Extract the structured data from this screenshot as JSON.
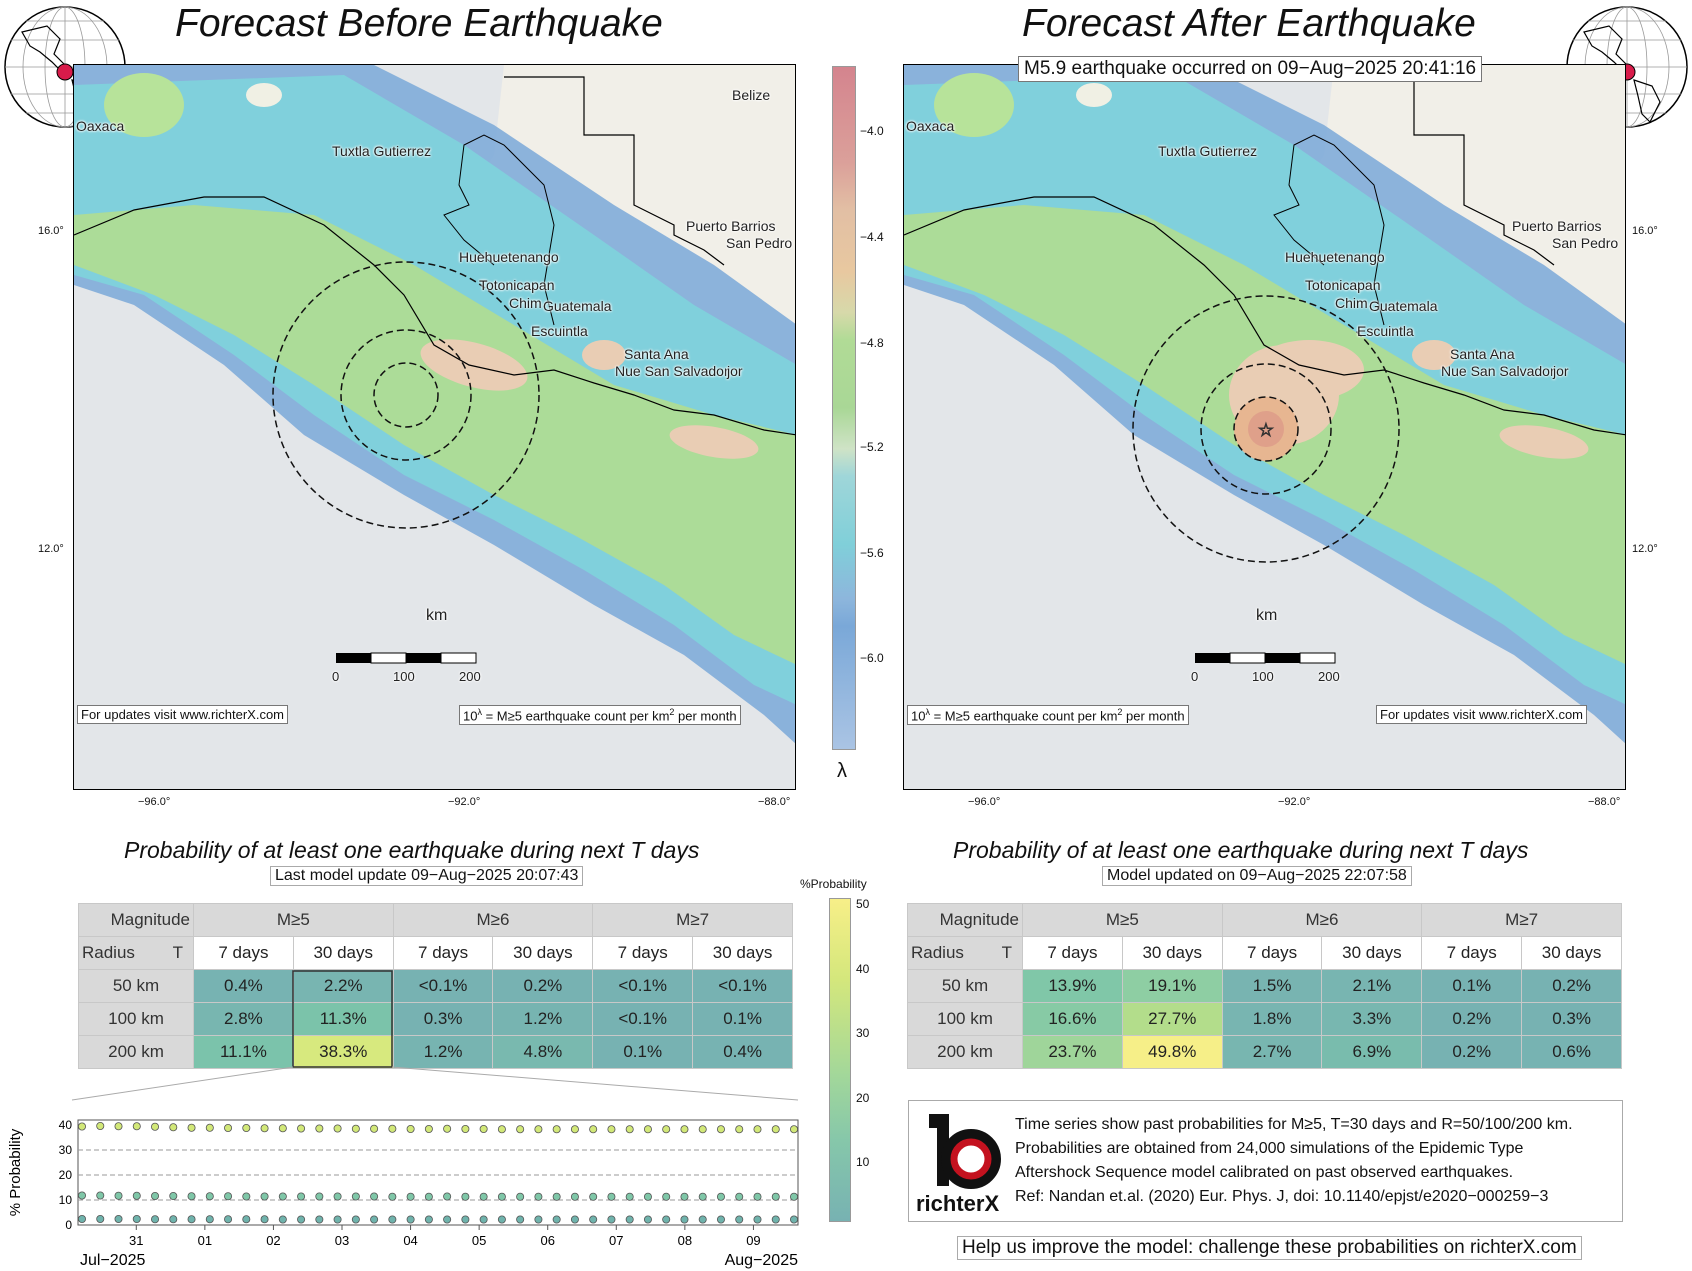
{
  "titles": {
    "left": "Forecast Before Earthquake",
    "right": "Forecast After Earthquake",
    "event_box": "M5.9 earthquake occurred on 09−Aug−2025 20:41:16"
  },
  "map": {
    "cities": {
      "oaxaca": "Oaxaca",
      "tuxtla": "Tuxtla Gutierrez",
      "belize": "Belize",
      "puerto_barrios": "Puerto Barrios",
      "san_pedro": "San Pedro",
      "huehuetenango": "Huehuetenango",
      "totonicapan": "Totonicapan",
      "chimaltenango": "Chim",
      "guatemala": "Guatemala",
      "escuintla": "Escuintla",
      "santa_ana": "Santa Ana",
      "nueva_san_salvador": "Nue San Salvador",
      "jor": "jor"
    },
    "lat_ticks": [
      "16.0°",
      "12.0°"
    ],
    "lon_ticks": [
      "−96.0°",
      "−92.0°",
      "−88.0°"
    ],
    "scale": {
      "unit": "km",
      "ticks": [
        "0",
        "100",
        "200"
      ]
    },
    "updates_text": "For updates visit www.richterX.com",
    "lambda_note": "10λ = M≥5 earthquake count per km2 per month",
    "lambda_note_parts": {
      "prefix": "10",
      "sup1": "λ",
      "mid": " = M≥5 earthquake count per km",
      "sup2": "2",
      "suffix": " per month"
    }
  },
  "colorbar": {
    "symbol": "λ",
    "ticks": [
      "−4.0",
      "−4.4",
      "−4.8",
      "−5.2",
      "−5.6",
      "−6.0"
    ]
  },
  "prob_colorbar": {
    "label": "%Probability",
    "ticks": [
      "50",
      "40",
      "30",
      "20",
      "10"
    ]
  },
  "probability": {
    "title": "Probability of at least one earthquake during next T days",
    "before_update": "Last model update 09−Aug−2025 20:07:43",
    "after_update": "Model updated on 09−Aug−2025 22:07:58",
    "header": {
      "magnitude": "Magnitude",
      "radius": "Radius",
      "t": "T",
      "m5": "M≥5",
      "m6": "M≥6",
      "m7": "M≥7",
      "d7": "7 days",
      "d30": "30 days"
    },
    "rows": [
      "50 km",
      "100 km",
      "200 km"
    ],
    "before": [
      [
        "0.4%",
        "2.2%",
        "<0.1%",
        "0.2%",
        "<0.1%",
        "<0.1%"
      ],
      [
        "2.8%",
        "11.3%",
        "0.3%",
        "1.2%",
        "<0.1%",
        "0.1%"
      ],
      [
        "11.1%",
        "38.3%",
        "1.2%",
        "4.8%",
        "0.1%",
        "0.4%"
      ]
    ],
    "after": [
      [
        "13.9%",
        "19.1%",
        "1.5%",
        "2.1%",
        "0.1%",
        "0.2%"
      ],
      [
        "16.6%",
        "27.7%",
        "1.8%",
        "3.3%",
        "0.2%",
        "0.3%"
      ],
      [
        "23.7%",
        "49.8%",
        "2.7%",
        "6.9%",
        "0.2%",
        "0.6%"
      ]
    ]
  },
  "chart_data": {
    "type": "scatter",
    "ylabel": "% Probability",
    "ylim": [
      0,
      42
    ],
    "yticks": [
      "40",
      "30",
      "20",
      "10",
      "0"
    ],
    "categories": [
      "31",
      "01",
      "02",
      "03",
      "04",
      "05",
      "06",
      "07",
      "08",
      "09"
    ],
    "x_start_label": "Jul−2025",
    "x_end_label": "Aug−2025",
    "series": [
      {
        "values": [
          39.4,
          39.6,
          39.5,
          39.5,
          39.3,
          39.1,
          38.9,
          38.9,
          38.8,
          38.8,
          38.7,
          38.7,
          38.6,
          38.6,
          38.6,
          38.5,
          38.5,
          38.5,
          38.4,
          38.4,
          38.5,
          38.4,
          38.4,
          38.3,
          38.3,
          38.3,
          38.3,
          38.3,
          38.3,
          38.3,
          38.3,
          38.3,
          38.3,
          38.3,
          38.3,
          38.3,
          38.3,
          38.3,
          38.3,
          38.3,
          38.3,
          38.3,
          38.3,
          38.3,
          38.3,
          38.3,
          38.3,
          38.3,
          38.3,
          38.3,
          38.3,
          38.3,
          38.3,
          38.3,
          38.3,
          38.3,
          38.3,
          38.3,
          38.3,
          38.3,
          38.3,
          38.3,
          38.3,
          38.3,
          38.3,
          38.3,
          38.3,
          38.3,
          38.3,
          38.3,
          38.3,
          38.3,
          38.3,
          38.3,
          38.3,
          38.3,
          38.3,
          38.3,
          38.3,
          38.3,
          38.3,
          38.3,
          38.3,
          38.3,
          38.3,
          38.3,
          38.3,
          38.3,
          38.3,
          38.3,
          38.3,
          38.3,
          38.3,
          38.3,
          38.3,
          38.3,
          38.3,
          38.3,
          38.3,
          38.3,
          38.3,
          38.3,
          38.3,
          38.3,
          38.3,
          38.3,
          38.3,
          38.3,
          38.3,
          38.3,
          38.3,
          38.3,
          38.3,
          38.3,
          38.3,
          38.3,
          38.3,
          38.3,
          38.3,
          38.3,
          38.3,
          38.3,
          38.3,
          38.3,
          38.3,
          38.3,
          38.3,
          38.3,
          38.3,
          38.3,
          38.3,
          38.3,
          38.3,
          38.3,
          38.3,
          38.3,
          38.3,
          38.3,
          38.3,
          38.3,
          38.3,
          38.3,
          38.3,
          38.3,
          38.3,
          38.3,
          38.3,
          38.3,
          38.3,
          38.3,
          38.3,
          38.3,
          38.3,
          38.3,
          38.3,
          38.3,
          38.3,
          38.3,
          38.3,
          38.3,
          38.3,
          38.3,
          38.3,
          38.3,
          38.3,
          38.3,
          38.3,
          38.3,
          38.3,
          38.3,
          38.3,
          38.3,
          38.3,
          38.3,
          38.3,
          38.3,
          38.3,
          38.3,
          38.3,
          38.3,
          38.3,
          38.3,
          38.3,
          38.3,
          38.3,
          38.3,
          38.3,
          38.3,
          38.3,
          38.3,
          38.3,
          38.3,
          38.3,
          38.3,
          38.3,
          38.3,
          38.3,
          38.3,
          38.3,
          38.3,
          38.3,
          38.3,
          38.3,
          38.3,
          38.3,
          38.3,
          38.3,
          38.3,
          38.3,
          38.3,
          38.3,
          38.3,
          38.3,
          38.3,
          38.3,
          38.3,
          38.3,
          38.3,
          38.3,
          38.3,
          38.3,
          38.3,
          38.3,
          38.3,
          38.3,
          38.3,
          38.3,
          38.3,
          38.3,
          38.3,
          38.3,
          38.3,
          38.3,
          38.3,
          38.3,
          38.3,
          38.3,
          38.3,
          38.3,
          38.3,
          38.3,
          38.3,
          38.3,
          38.3,
          38.3,
          38.3,
          38.3,
          38.3,
          38.3,
          38.3,
          38.3,
          38.3,
          38.3,
          38.3,
          38.3,
          38.3,
          38.3,
          38.3,
          38.3,
          38.3,
          38.3,
          38.3,
          38.3,
          38.3,
          38.3,
          38.3,
          38.3,
          38.3,
          38.3,
          38.3,
          38.3,
          38.3,
          38.3,
          38.3,
          38.3,
          38.3,
          38.3,
          38.3,
          38.3,
          38.3,
          38.3,
          38.3,
          38.3,
          38.3,
          38.3,
          38.3,
          38.3,
          38.3,
          38.3,
          38.3,
          38.3,
          38.3,
          38.3,
          38.3,
          38.3,
          38.3,
          38.3,
          38.3,
          38.3,
          38.3,
          38.3,
          38.3,
          38.3,
          38.3,
          38.3,
          38.3,
          38.3,
          38.3,
          38.3,
          38.3
        ],
        "color": "#d2e878"
      },
      {
        "values": [
          11.8,
          11.8,
          11.7,
          11.7,
          11.6,
          11.6,
          11.5,
          11.5,
          11.5,
          11.4,
          11.4,
          11.4,
          11.4,
          11.4,
          11.4,
          11.4,
          11.4,
          11.3,
          11.3,
          11.3,
          11.4,
          11.3,
          11.3,
          11.3,
          11.3,
          11.3,
          11.3,
          11.3,
          11.3,
          11.3,
          11.3,
          11.3,
          11.3,
          11.3,
          11.3,
          11.3,
          11.3,
          11.3,
          11.3,
          11.3
        ],
        "color": "#7fc7a8"
      },
      {
        "values": [
          2.4,
          2.4,
          2.4,
          2.4,
          2.3,
          2.3,
          2.3,
          2.3,
          2.3,
          2.3,
          2.3,
          2.2,
          2.2,
          2.2,
          2.2,
          2.2,
          2.2,
          2.2,
          2.2,
          2.2,
          2.2,
          2.2,
          2.2,
          2.2,
          2.2,
          2.2,
          2.2,
          2.2,
          2.2,
          2.2,
          2.2,
          2.2,
          2.2,
          2.2,
          2.2,
          2.2,
          2.2,
          2.2,
          2.2,
          2.2
        ],
        "color": "#6fb3ac"
      }
    ]
  },
  "info": {
    "logo_text": "richterX",
    "lines": [
      "Time series show past probabilities for M≥5, T=30 days and R=50/100/200 km.",
      "Probabilities are obtained from 24,000 simulations of the Epidemic Type",
      "Aftershock Sequence model calibrated on past observed earthquakes.",
      "Ref: Nandan et.al. (2020) Eur. Phys. J, doi: 10.1140/epjst/e2020−000259−3"
    ],
    "help": "Help us improve the model: challenge these probabilities on richterX.com"
  },
  "colors": {
    "cell_low": "#77b2b2",
    "cell_green": "#a4d2a2",
    "cell_yellow": "#f4ec86",
    "header_grey": "#d9d9d9"
  }
}
